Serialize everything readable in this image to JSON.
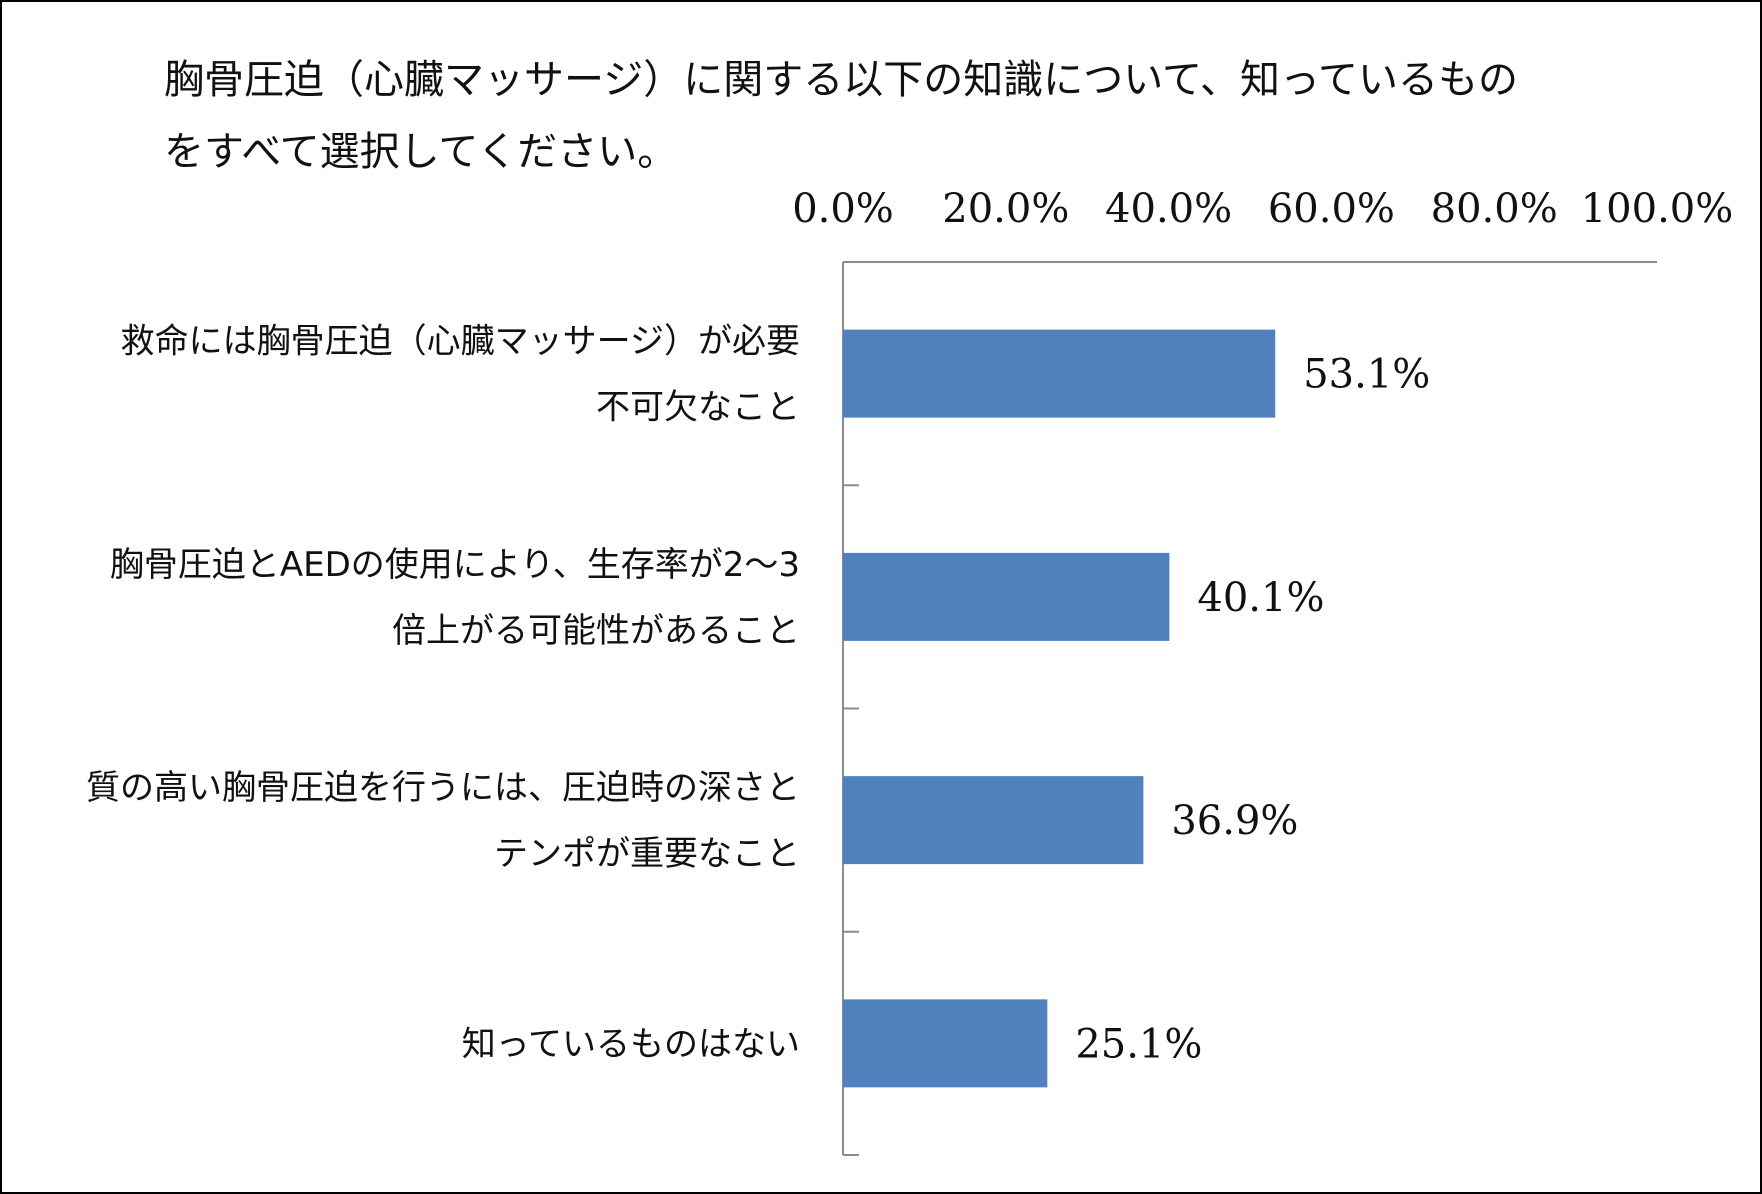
{
  "chart_data": {
    "type": "bar",
    "orientation": "horizontal",
    "title": [
      "胸骨圧迫（心臓マッサージ）に関する以下の知識について、知っているもの",
      "をすべて選択してください。"
    ],
    "categories": [
      [
        "救命には胸骨圧迫（心臓マッサージ）が必要",
        "不可欠なこと"
      ],
      [
        "胸骨圧迫とAEDの使用により、生存率が2～3",
        "倍上がる可能性があること"
      ],
      [
        "質の高い胸骨圧迫を行うには、圧迫時の深さと",
        "テンポが重要なこと"
      ],
      [
        "知っているものはない"
      ]
    ],
    "values": [
      53.1,
      40.1,
      36.9,
      25.1
    ],
    "value_labels": [
      "53.1%",
      "40.1%",
      "36.9%",
      "25.1%"
    ],
    "xlim": [
      0,
      100
    ],
    "x_ticks": [
      0,
      20,
      40,
      60,
      80,
      100
    ],
    "x_tick_labels": [
      "0.0%",
      "20.0%",
      "40.0%",
      "60.0%",
      "80.0%",
      "100.0%"
    ],
    "axis_position": "top",
    "grid": false,
    "legend": "none",
    "bar_color": "#4F81BD",
    "axis_color": "#8C8C8C"
  }
}
